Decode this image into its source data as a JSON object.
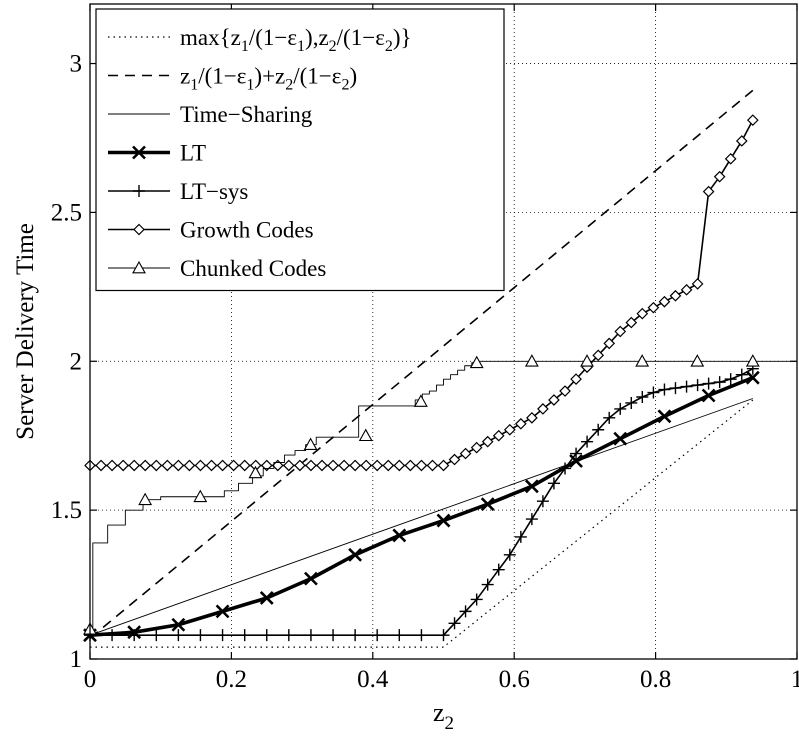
{
  "chart_data": {
    "type": "line",
    "title": "",
    "xlabel_main": "z",
    "xlabel_sub": "2",
    "ylabel": "Server Delivery Time",
    "xlim": [
      0,
      1
    ],
    "ylim": [
      1,
      3.2
    ],
    "grid": true,
    "legend_position": "top-left",
    "xticks": [
      0,
      0.2,
      0.4,
      0.6,
      0.8,
      1
    ],
    "xtick_labels": [
      "0",
      "0.2",
      "0.4",
      "0.6",
      "0.8",
      "1"
    ],
    "yticks": [
      1,
      1.5,
      2,
      2.5,
      3
    ],
    "ytick_labels": [
      "1",
      "1.5",
      "2",
      "2.5",
      "3"
    ],
    "series": [
      {
        "id": "max",
        "legend": [
          {
            "t": "max{z"
          },
          {
            "t": "1",
            "sub": true
          },
          {
            "t": "/(1−ε"
          },
          {
            "t": "1",
            "sub": true
          },
          {
            "t": "),z"
          },
          {
            "t": "2",
            "sub": true
          },
          {
            "t": "/(1−ε"
          },
          {
            "t": "2",
            "sub": true
          },
          {
            "t": ")}"
          }
        ],
        "style": "dotted",
        "marker": "none",
        "x": [
          0,
          0.5,
          0.9375
        ],
        "y": [
          1.04,
          1.04,
          1.87
        ]
      },
      {
        "id": "sum",
        "legend": [
          {
            "t": "z"
          },
          {
            "t": "1",
            "sub": true
          },
          {
            "t": "/(1−ε"
          },
          {
            "t": "1",
            "sub": true
          },
          {
            "t": ")+z"
          },
          {
            "t": "2",
            "sub": true
          },
          {
            "t": "/(1−ε"
          },
          {
            "t": "2",
            "sub": true
          },
          {
            "t": ")"
          }
        ],
        "style": "dashed",
        "marker": "none",
        "x": [
          0,
          0.9375
        ],
        "y": [
          1.07,
          2.91
        ]
      },
      {
        "id": "timesharing",
        "legend": [
          {
            "t": "Time−Sharing"
          }
        ],
        "style": "thin",
        "marker": "none",
        "x": [
          0,
          0.9375
        ],
        "y": [
          1.08,
          1.875
        ]
      },
      {
        "id": "lt",
        "legend": [
          {
            "t": "LT"
          }
        ],
        "style": "thick",
        "marker": "x",
        "x": [
          0,
          0.0625,
          0.125,
          0.1875,
          0.25,
          0.3125,
          0.375,
          0.4375,
          0.5,
          0.5625,
          0.625,
          0.6875,
          0.75,
          0.8125,
          0.875,
          0.9375
        ],
        "y": [
          1.08,
          1.09,
          1.115,
          1.16,
          1.205,
          1.27,
          1.35,
          1.415,
          1.465,
          1.52,
          1.58,
          1.665,
          1.74,
          1.815,
          1.885,
          1.945
        ]
      },
      {
        "id": "ltsys",
        "legend": [
          {
            "t": "LT−sys"
          }
        ],
        "style": "normal",
        "marker": "plus",
        "x": [
          0,
          0.0312,
          0.0625,
          0.0938,
          0.125,
          0.1562,
          0.1875,
          0.2188,
          0.25,
          0.2812,
          0.3125,
          0.3438,
          0.375,
          0.4062,
          0.4375,
          0.4688,
          0.5,
          0.5156,
          0.5312,
          0.5469,
          0.5625,
          0.5781,
          0.5938,
          0.6094,
          0.625,
          0.6406,
          0.6562,
          0.6719,
          0.6875,
          0.7031,
          0.7188,
          0.7344,
          0.75,
          0.7656,
          0.7812,
          0.7969,
          0.8125,
          0.8281,
          0.8438,
          0.8594,
          0.875,
          0.8906,
          0.9062,
          0.9219,
          0.9375
        ],
        "y": [
          1.08,
          1.08,
          1.08,
          1.08,
          1.08,
          1.08,
          1.08,
          1.08,
          1.08,
          1.08,
          1.08,
          1.08,
          1.08,
          1.08,
          1.08,
          1.08,
          1.08,
          1.12,
          1.16,
          1.2,
          1.25,
          1.3,
          1.35,
          1.41,
          1.47,
          1.53,
          1.59,
          1.64,
          1.69,
          1.73,
          1.77,
          1.81,
          1.84,
          1.86,
          1.88,
          1.895,
          1.905,
          1.91,
          1.915,
          1.92,
          1.925,
          1.93,
          1.94,
          1.955,
          1.975
        ]
      },
      {
        "id": "growth",
        "legend": [
          {
            "t": "Growth Codes"
          }
        ],
        "style": "normal",
        "marker": "diamond",
        "x": [
          0,
          0.0156,
          0.0312,
          0.0469,
          0.0625,
          0.0781,
          0.0938,
          0.1094,
          0.125,
          0.1406,
          0.1562,
          0.1719,
          0.1875,
          0.2031,
          0.2188,
          0.2344,
          0.25,
          0.2656,
          0.2812,
          0.2969,
          0.3125,
          0.3281,
          0.3438,
          0.3594,
          0.375,
          0.3906,
          0.4062,
          0.4219,
          0.4375,
          0.4531,
          0.4688,
          0.4844,
          0.5,
          0.5156,
          0.5312,
          0.5469,
          0.5625,
          0.5781,
          0.5938,
          0.6094,
          0.625,
          0.6406,
          0.6562,
          0.6719,
          0.6875,
          0.7031,
          0.7188,
          0.7344,
          0.75,
          0.7656,
          0.7812,
          0.7969,
          0.8125,
          0.8281,
          0.8438,
          0.8594,
          0.875,
          0.8906,
          0.9062,
          0.9219,
          0.9375
        ],
        "y": [
          1.65,
          1.65,
          1.65,
          1.65,
          1.65,
          1.65,
          1.65,
          1.65,
          1.65,
          1.65,
          1.65,
          1.65,
          1.65,
          1.65,
          1.65,
          1.65,
          1.65,
          1.65,
          1.65,
          1.65,
          1.65,
          1.65,
          1.65,
          1.65,
          1.65,
          1.65,
          1.65,
          1.65,
          1.65,
          1.65,
          1.65,
          1.65,
          1.65,
          1.67,
          1.69,
          1.71,
          1.73,
          1.75,
          1.77,
          1.79,
          1.81,
          1.84,
          1.87,
          1.9,
          1.94,
          1.98,
          2.02,
          2.06,
          2.1,
          2.13,
          2.16,
          2.18,
          2.2,
          2.22,
          2.24,
          2.26,
          2.57,
          2.62,
          2.68,
          2.74,
          2.81
        ]
      },
      {
        "id": "chunked",
        "legend": [
          {
            "t": "Chunked Codes"
          }
        ],
        "style": "thin",
        "marker": "triangle",
        "step_x": [
          0,
          0.004,
          0.004,
          0.025,
          0.025,
          0.05,
          0.05,
          0.075,
          0.075,
          0.1,
          0.1,
          0.19,
          0.19,
          0.21,
          0.21,
          0.23,
          0.23,
          0.245,
          0.245,
          0.26,
          0.26,
          0.275,
          0.275,
          0.29,
          0.29,
          0.305,
          0.305,
          0.32,
          0.32,
          0.38,
          0.38,
          0.46,
          0.46,
          0.47,
          0.47,
          0.48,
          0.48,
          0.49,
          0.49,
          0.5,
          0.5,
          0.51,
          0.51,
          0.52,
          0.52,
          0.53,
          0.53,
          0.54,
          0.54,
          0.55,
          0.55,
          1
        ],
        "step_y": [
          1.1,
          1.1,
          1.39,
          1.39,
          1.45,
          1.45,
          1.5,
          1.5,
          1.535,
          1.535,
          1.545,
          1.545,
          1.565,
          1.565,
          1.59,
          1.59,
          1.615,
          1.615,
          1.64,
          1.64,
          1.66,
          1.66,
          1.685,
          1.685,
          1.7,
          1.7,
          1.72,
          1.72,
          1.745,
          1.745,
          1.85,
          1.85,
          1.87,
          1.87,
          1.89,
          1.89,
          1.9,
          1.9,
          1.92,
          1.92,
          1.94,
          1.94,
          1.955,
          1.955,
          1.97,
          1.97,
          1.985,
          1.985,
          1.995,
          1.995,
          2.0,
          2.0
        ],
        "x": [
          0,
          0.078,
          0.156,
          0.234,
          0.312,
          0.39,
          0.468,
          0.547,
          0.625,
          0.703,
          0.781,
          0.859,
          0.9375
        ],
        "y": [
          1.1,
          1.535,
          1.545,
          1.625,
          1.72,
          1.75,
          1.865,
          1.995,
          2.0,
          2.0,
          2.0,
          2.0,
          2.0
        ]
      }
    ]
  }
}
